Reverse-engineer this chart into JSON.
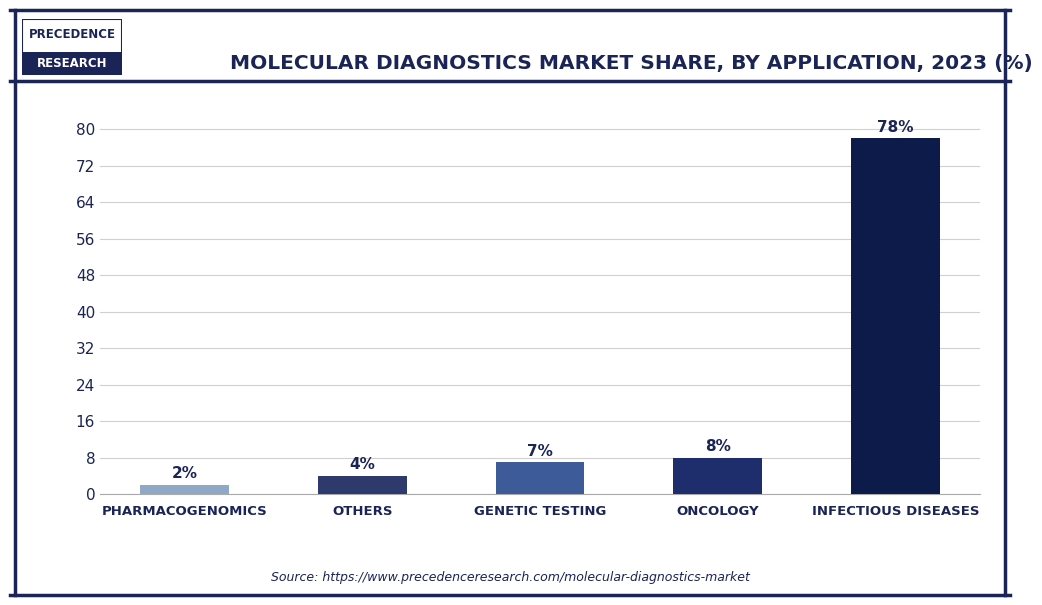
{
  "title": "MOLECULAR DIAGNOSTICS MARKET SHARE, BY APPLICATION, 2023 (%)",
  "categories": [
    "PHARMACOGENOMICS",
    "OTHERS",
    "GENETIC TESTING",
    "ONCOLOGY",
    "INFECTIOUS DISEASES"
  ],
  "values": [
    2,
    4,
    7,
    8,
    78
  ],
  "bar_colors": [
    "#8fa8c8",
    "#2d3a6b",
    "#3d5a99",
    "#1e2d6b",
    "#0d1b4b"
  ],
  "label_color": "#1a2456",
  "yticks": [
    0,
    8,
    16,
    24,
    32,
    40,
    48,
    56,
    64,
    72,
    80
  ],
  "ylim": [
    0,
    86
  ],
  "source_text": "Source: https://www.precedenceresearch.com/molecular-diagnostics-market",
  "bg_color": "#ffffff",
  "grid_color": "#d0d0d0",
  "title_color": "#1a2456",
  "logo_text1": "PRECEDENCE",
  "logo_text2": "RESEARCH",
  "logo_bg": "#1a2456",
  "logo_border": "#1a2456"
}
